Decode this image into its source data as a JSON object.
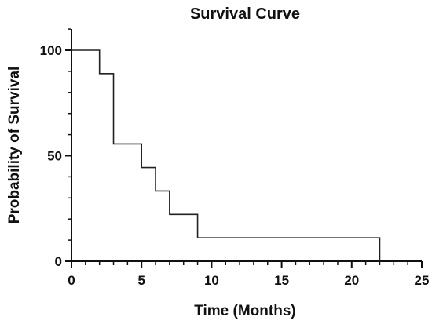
{
  "chart_data": {
    "type": "line",
    "step": true,
    "title": "Survival Curve",
    "xlabel": "Time (Months)",
    "ylabel": "Probability of Survival",
    "xlim": [
      0,
      25
    ],
    "ylim": [
      0,
      100
    ],
    "x_ticks": [
      0,
      5,
      10,
      15,
      20,
      25
    ],
    "x_tick_labels": [
      "0",
      "5",
      "10",
      "15",
      "20",
      "25"
    ],
    "y_ticks": [
      0,
      50,
      100
    ],
    "y_tick_labels": [
      "0",
      "50",
      "100"
    ],
    "grid": false,
    "series": [
      {
        "x": [
          0,
          2,
          3,
          5,
          6,
          7,
          9,
          22
        ],
        "y": [
          100,
          88.9,
          55.6,
          44.4,
          33.3,
          22.2,
          11.1,
          0
        ]
      }
    ]
  }
}
